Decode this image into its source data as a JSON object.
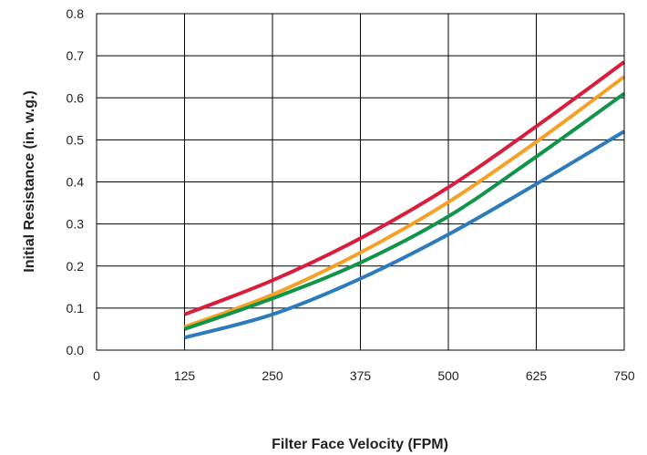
{
  "chart_data": {
    "type": "line",
    "title": "",
    "xlabel": "Filter Face Velocity (FPM)",
    "ylabel": "Initial Resistance (in. w.g.)",
    "xlim": [
      0,
      750
    ],
    "ylim": [
      0,
      0.8
    ],
    "x_ticks": [
      "0",
      "125",
      "250",
      "375",
      "500",
      "625",
      "750"
    ],
    "y_ticks": [
      "0.0",
      "0.1",
      "0.2",
      "0.3",
      "0.4",
      "0.5",
      "0.6",
      "0.7",
      "0.8"
    ],
    "grid": true,
    "legend": "none",
    "series": [
      {
        "color": "#d81e3c",
        "x": [
          125,
          250,
          375,
          500,
          625,
          750
        ],
        "y": [
          0.085,
          0.166,
          0.266,
          0.387,
          0.532,
          0.685
        ]
      },
      {
        "color": "#f5a026",
        "x": [
          125,
          250,
          375,
          500,
          625,
          750
        ],
        "y": [
          0.055,
          0.132,
          0.232,
          0.352,
          0.495,
          0.65
        ]
      },
      {
        "color": "#0f9448",
        "x": [
          125,
          250,
          375,
          500,
          625,
          750
        ],
        "y": [
          0.05,
          0.123,
          0.208,
          0.318,
          0.46,
          0.61
        ]
      },
      {
        "color": "#2c7bbd",
        "x": [
          125,
          250,
          375,
          500,
          625,
          750
        ],
        "y": [
          0.03,
          0.085,
          0.17,
          0.275,
          0.395,
          0.52
        ]
      }
    ]
  }
}
